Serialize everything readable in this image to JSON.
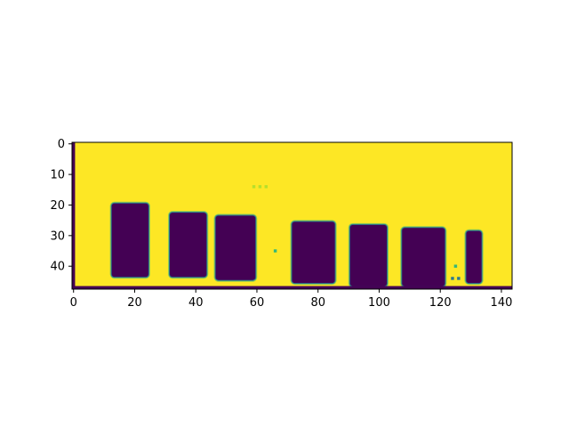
{
  "chart_data": {
    "type": "heatmap",
    "colormap": "viridis",
    "colors": {
      "background": "#fde725",
      "dark": "#440154",
      "edge_teal": "#2a788e",
      "edge_green": "#35b779",
      "edge_lime": "#b5de2b",
      "frame": "#000000"
    },
    "xlim": [
      0,
      144
    ],
    "ylim": [
      47,
      0
    ],
    "x_ticks": [
      0,
      20,
      40,
      60,
      80,
      100,
      120,
      140
    ],
    "y_ticks": [
      0,
      10,
      20,
      30,
      40
    ],
    "x_tick_labels": [
      "0",
      "20",
      "40",
      "60",
      "80",
      "100",
      "120",
      "140"
    ],
    "y_tick_labels": [
      "0",
      "10",
      "20",
      "30",
      "40"
    ],
    "dark_blobs": [
      {
        "x0": 12.5,
        "x1": 24.5,
        "y0": 19.5,
        "y1": 43.5
      },
      {
        "x0": 31.5,
        "x1": 43.5,
        "y0": 22.5,
        "y1": 43.5
      },
      {
        "x0": 46.5,
        "x1": 59.5,
        "y0": 23.5,
        "y1": 44.5
      },
      {
        "x0": 71.5,
        "x1": 85.5,
        "y0": 25.5,
        "y1": 45.5
      },
      {
        "x0": 90.5,
        "x1": 102.5,
        "y0": 26.5,
        "y1": 46.5
      },
      {
        "x0": 107.5,
        "x1": 121.5,
        "y0": 27.5,
        "y1": 46.5
      },
      {
        "x0": 128.5,
        "x1": 133.5,
        "y0": 28.5,
        "y1": 45.5
      }
    ],
    "bottom_dark_row": {
      "x0": 0,
      "x1": 144,
      "y0": 46.5,
      "y1": 47.5
    },
    "left_dark_column": {
      "x0": -0.5,
      "x1": 0.5,
      "y0": -0.5,
      "y1": 47.5
    },
    "speckles": [
      {
        "x": 59,
        "y": 14,
        "color": "#b5de2b"
      },
      {
        "x": 61,
        "y": 14,
        "color": "#b5de2b"
      },
      {
        "x": 63,
        "y": 14,
        "color": "#b5de2b"
      },
      {
        "x": 66,
        "y": 35,
        "color": "#35b779"
      },
      {
        "x": 125,
        "y": 40,
        "color": "#35b779"
      },
      {
        "x": 124,
        "y": 44,
        "color": "#2a788e"
      },
      {
        "x": 126,
        "y": 44,
        "color": "#2a788e"
      }
    ]
  }
}
